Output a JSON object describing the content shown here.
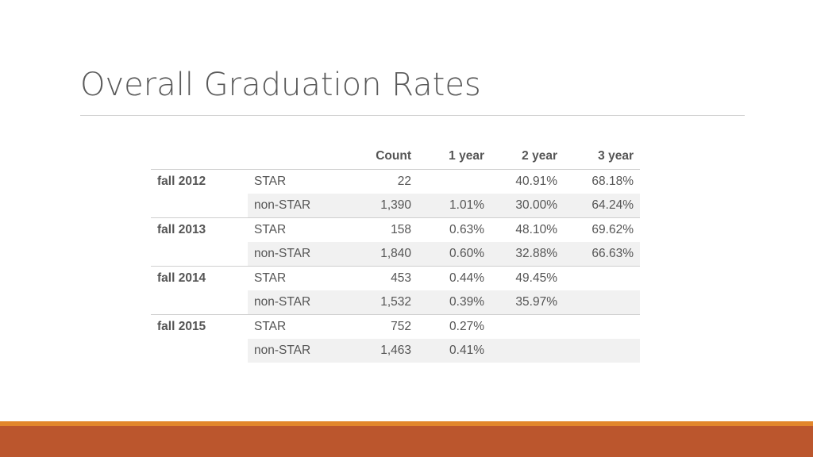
{
  "slide": {
    "title": "Overall Graduation Rates"
  },
  "table": {
    "headers": [
      "",
      "",
      "Count",
      "1 year",
      "2 year",
      "3 year"
    ],
    "groups": [
      {
        "label": "fall 2012",
        "rows": [
          {
            "label": "STAR",
            "count": "22",
            "y1": "",
            "y2": "40.91%",
            "y3": "68.18%"
          },
          {
            "label": "non-STAR",
            "count": "1,390",
            "y1": "1.01%",
            "y2": "30.00%",
            "y3": "64.24%"
          }
        ]
      },
      {
        "label": "fall 2013",
        "rows": [
          {
            "label": "STAR",
            "count": "158",
            "y1": "0.63%",
            "y2": "48.10%",
            "y3": "69.62%"
          },
          {
            "label": "non-STAR",
            "count": "1,840",
            "y1": "0.60%",
            "y2": "32.88%",
            "y3": "66.63%"
          }
        ]
      },
      {
        "label": "fall 2014",
        "rows": [
          {
            "label": "STAR",
            "count": "453",
            "y1": "0.44%",
            "y2": "49.45%",
            "y3": ""
          },
          {
            "label": "non-STAR",
            "count": "1,532",
            "y1": "0.39%",
            "y2": "35.97%",
            "y3": ""
          }
        ]
      },
      {
        "label": "fall 2015",
        "rows": [
          {
            "label": "STAR",
            "count": "752",
            "y1": "0.27%",
            "y2": "",
            "y3": ""
          },
          {
            "label": "non-STAR",
            "count": "1,463",
            "y1": "0.41%",
            "y2": "",
            "y3": ""
          }
        ]
      }
    ]
  },
  "colors": {
    "title": "#595959",
    "accent_band": "#bb562d",
    "accent_stripe": "#e2862b",
    "row_shade": "#f1f1f1"
  }
}
